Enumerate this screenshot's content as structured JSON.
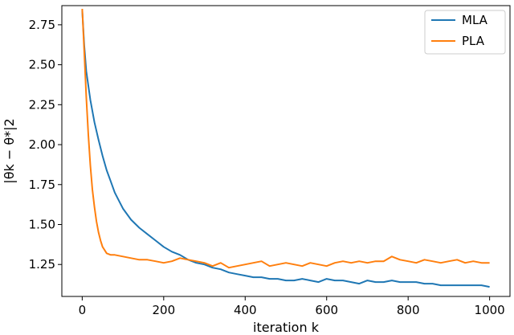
{
  "chart_data": {
    "type": "line",
    "title": "",
    "xlabel": "iteration k",
    "ylabel": "|θk − θ*|2",
    "xlim": [
      -50,
      1050
    ],
    "ylim": [
      1.05,
      2.87
    ],
    "xticks": [
      0,
      200,
      400,
      600,
      800,
      1000
    ],
    "xtick_labels": [
      "0",
      "200",
      "400",
      "600",
      "800",
      "1000"
    ],
    "yticks": [
      1.25,
      1.5,
      1.75,
      2.0,
      2.25,
      2.5,
      2.75
    ],
    "ytick_labels": [
      "1.25",
      "1.50",
      "1.75",
      "2.00",
      "2.25",
      "2.50",
      "2.75"
    ],
    "grid": false,
    "legend_position": "top-right",
    "series": [
      {
        "name": "MLA",
        "color": "#1f77b4",
        "x": [
          0,
          5,
          10,
          20,
          30,
          40,
          50,
          60,
          70,
          80,
          90,
          100,
          120,
          140,
          160,
          180,
          200,
          220,
          240,
          260,
          280,
          300,
          320,
          340,
          360,
          380,
          400,
          420,
          440,
          460,
          480,
          500,
          520,
          540,
          560,
          580,
          600,
          620,
          640,
          660,
          680,
          700,
          720,
          740,
          760,
          780,
          800,
          820,
          840,
          860,
          880,
          900,
          920,
          940,
          960,
          980,
          1000
        ],
        "y": [
          2.84,
          2.62,
          2.46,
          2.28,
          2.14,
          2.03,
          1.93,
          1.84,
          1.77,
          1.7,
          1.65,
          1.6,
          1.53,
          1.48,
          1.44,
          1.4,
          1.36,
          1.33,
          1.31,
          1.28,
          1.26,
          1.25,
          1.23,
          1.22,
          1.2,
          1.19,
          1.18,
          1.17,
          1.17,
          1.16,
          1.16,
          1.15,
          1.15,
          1.16,
          1.15,
          1.14,
          1.16,
          1.15,
          1.15,
          1.14,
          1.13,
          1.15,
          1.14,
          1.14,
          1.15,
          1.14,
          1.14,
          1.14,
          1.13,
          1.13,
          1.12,
          1.12,
          1.12,
          1.12,
          1.12,
          1.12,
          1.11
        ]
      },
      {
        "name": "PLA",
        "color": "#ff7f0e",
        "x": [
          0,
          5,
          10,
          15,
          20,
          25,
          30,
          35,
          40,
          45,
          50,
          55,
          60,
          70,
          80,
          100,
          120,
          140,
          160,
          180,
          200,
          220,
          240,
          260,
          280,
          300,
          320,
          340,
          360,
          380,
          400,
          420,
          440,
          460,
          480,
          500,
          520,
          540,
          560,
          580,
          600,
          620,
          640,
          660,
          680,
          700,
          720,
          740,
          760,
          780,
          800,
          820,
          840,
          860,
          880,
          900,
          920,
          940,
          960,
          980,
          1000
        ],
        "y": [
          2.85,
          2.58,
          2.3,
          2.06,
          1.87,
          1.72,
          1.61,
          1.52,
          1.45,
          1.4,
          1.36,
          1.34,
          1.32,
          1.31,
          1.31,
          1.3,
          1.29,
          1.28,
          1.28,
          1.27,
          1.26,
          1.27,
          1.29,
          1.28,
          1.27,
          1.26,
          1.24,
          1.26,
          1.23,
          1.24,
          1.25,
          1.26,
          1.27,
          1.24,
          1.25,
          1.26,
          1.25,
          1.24,
          1.26,
          1.25,
          1.24,
          1.26,
          1.27,
          1.26,
          1.27,
          1.26,
          1.27,
          1.27,
          1.3,
          1.28,
          1.27,
          1.26,
          1.28,
          1.27,
          1.26,
          1.27,
          1.28,
          1.26,
          1.27,
          1.26,
          1.26
        ]
      }
    ]
  }
}
